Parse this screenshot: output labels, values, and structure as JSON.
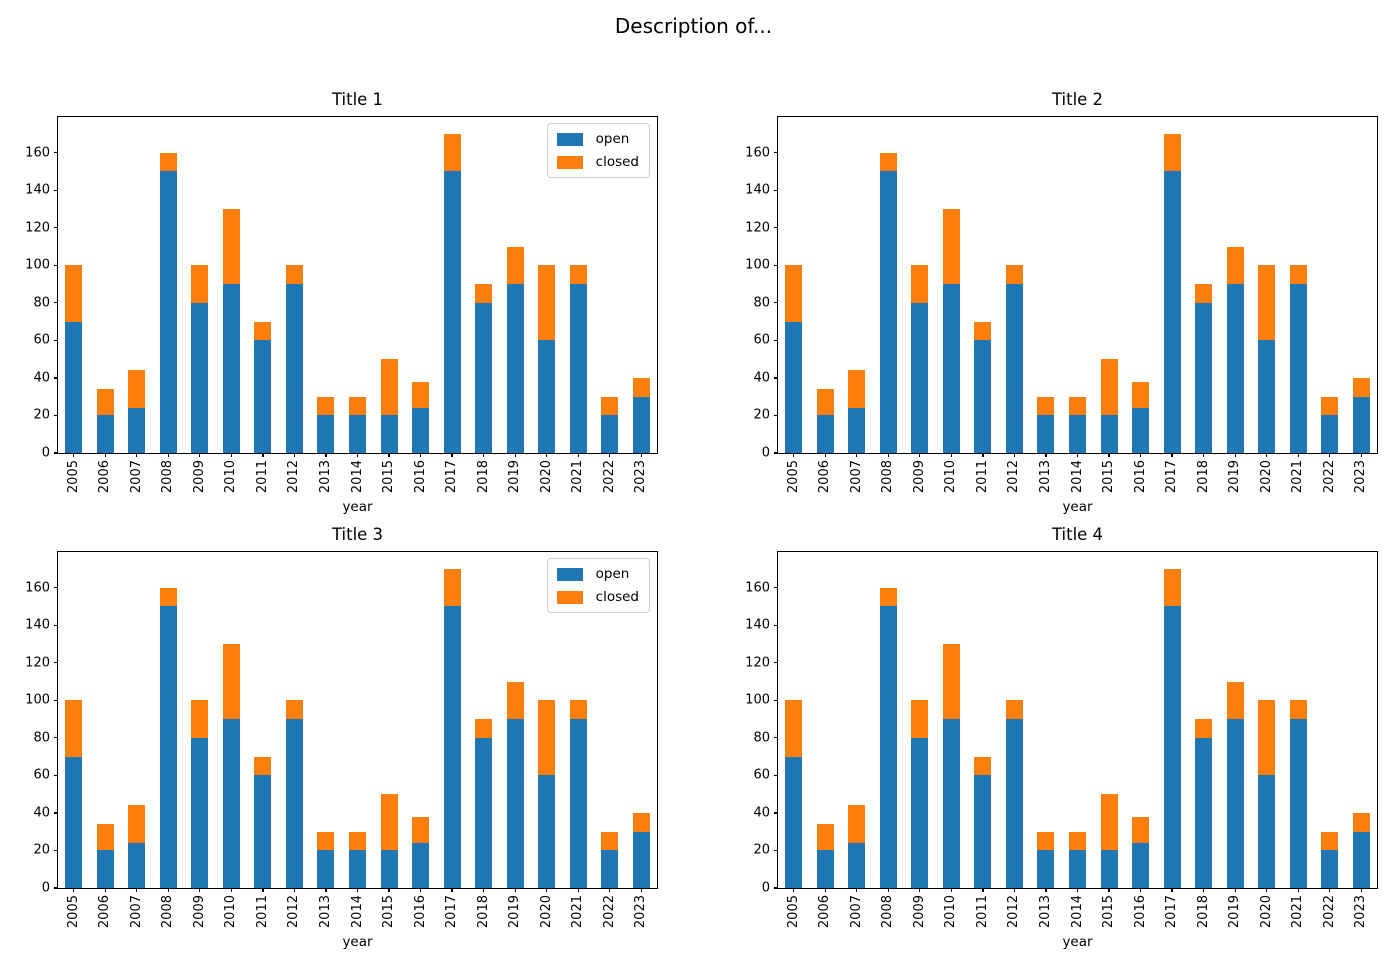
{
  "suptitle": "Description of...",
  "subplots": [
    {
      "title": "Title 1",
      "show_legend": true
    },
    {
      "title": "Title 2",
      "show_legend": false
    },
    {
      "title": "Title 3",
      "show_legend": true
    },
    {
      "title": "Title 4",
      "show_legend": false
    }
  ],
  "chart_data": {
    "type": "bar",
    "stacked": true,
    "title": "Description of...",
    "subplot_titles": [
      "Title 1",
      "Title 2",
      "Title 3",
      "Title 4"
    ],
    "xlabel": "year",
    "ylabel": "",
    "categories": [
      "2005",
      "2006",
      "2007",
      "2008",
      "2009",
      "2010",
      "2011",
      "2012",
      "2013",
      "2014",
      "2015",
      "2016",
      "2017",
      "2018",
      "2019",
      "2020",
      "2021",
      "2022",
      "2023"
    ],
    "series": [
      {
        "name": "open",
        "color": "#1f77b4",
        "values": [
          70,
          20,
          24,
          150,
          80,
          90,
          60,
          90,
          20,
          20,
          20,
          24,
          150,
          80,
          90,
          60,
          90,
          20,
          30
        ]
      },
      {
        "name": "closed",
        "color": "#ff7f0e",
        "values": [
          30,
          14,
          20,
          10,
          20,
          40,
          10,
          10,
          10,
          10,
          30,
          14,
          20,
          10,
          20,
          40,
          10,
          10,
          10
        ]
      }
    ],
    "totals": [
      100,
      34,
      44,
      160,
      100,
      130,
      70,
      100,
      30,
      30,
      50,
      38,
      170,
      90,
      110,
      100,
      100,
      30,
      40
    ],
    "ylim": [
      0,
      179
    ],
    "yticks": [
      0,
      20,
      40,
      60,
      80,
      100,
      120,
      140,
      160
    ],
    "grid": false,
    "legend_entries": [
      "open",
      "closed"
    ],
    "legend_position": "upper right"
  }
}
